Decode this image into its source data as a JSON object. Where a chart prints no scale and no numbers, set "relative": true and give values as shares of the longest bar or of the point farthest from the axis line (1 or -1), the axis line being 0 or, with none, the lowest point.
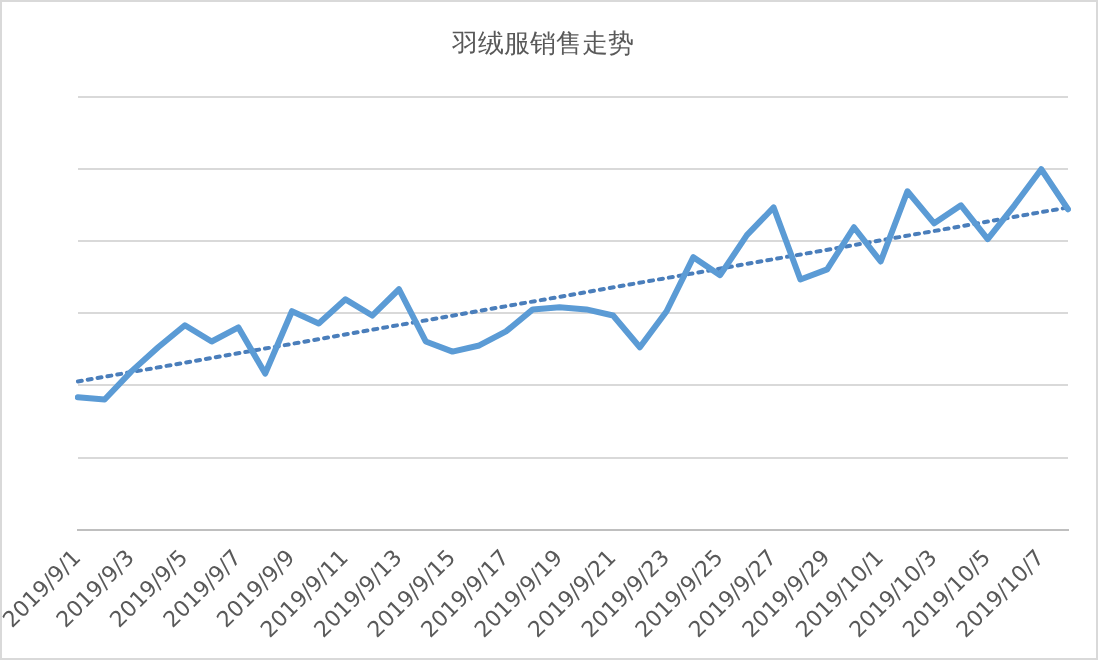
{
  "chart_data": {
    "type": "line",
    "title": "羽绒服销售走势",
    "relative": true,
    "grid": "y",
    "legend": false,
    "marker": "none",
    "categories": [
      "2019/9/1",
      null,
      "2019/9/3",
      null,
      "2019/9/5",
      null,
      "2019/9/7",
      null,
      "2019/9/9",
      null,
      "2019/9/11",
      null,
      "2019/9/13",
      null,
      "2019/9/15",
      null,
      "2019/9/17",
      null,
      "2019/9/19",
      null,
      "2019/9/21",
      null,
      "2019/9/23",
      null,
      "2019/9/25",
      null,
      "2019/9/27",
      null,
      "2019/9/29",
      null,
      "2019/10/1",
      null,
      "2019/10/3",
      null,
      "2019/10/5",
      null,
      "2019/10/7",
      null
    ],
    "series": [
      {
        "color": "#5b9bd5",
        "line_style": "solid",
        "values": [
          0.367,
          0.361,
          0.439,
          0.506,
          0.567,
          0.522,
          0.561,
          0.433,
          0.606,
          0.572,
          0.639,
          0.594,
          0.667,
          0.522,
          0.494,
          0.511,
          0.55,
          0.611,
          0.617,
          0.611,
          0.594,
          0.506,
          0.606,
          0.756,
          0.706,
          0.817,
          0.894,
          0.694,
          0.722,
          0.839,
          0.744,
          0.939,
          0.85,
          0.9,
          0.806,
          0.9,
          1,
          0.889
        ]
      },
      {
        "type": "line",
        "color": "#4a7ebb",
        "line_style": "dotted",
        "values": [
          0.411,
          null,
          null,
          null,
          null,
          null,
          null,
          null,
          null,
          null,
          null,
          null,
          null,
          null,
          null,
          null,
          null,
          null,
          null,
          null,
          null,
          null,
          null,
          null,
          null,
          null,
          null,
          null,
          null,
          null,
          null,
          null,
          null,
          null,
          null,
          null,
          null,
          0.894
        ]
      }
    ]
  }
}
